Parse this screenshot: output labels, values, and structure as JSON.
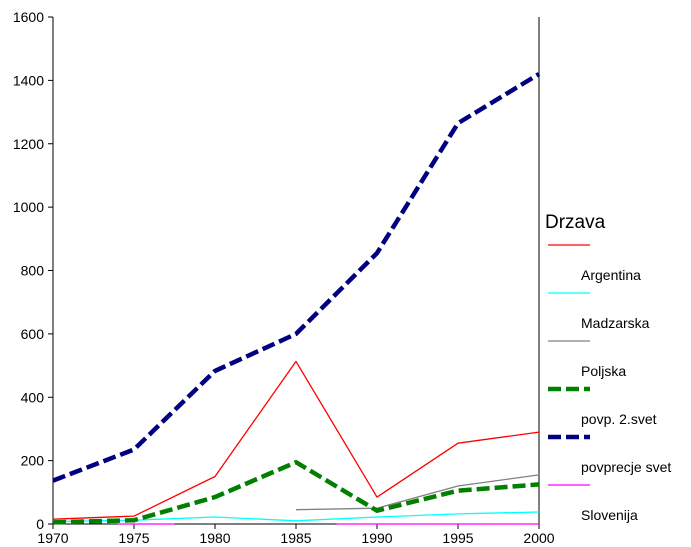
{
  "chart_data": {
    "type": "line",
    "title": "",
    "xlabel": "",
    "ylabel": "",
    "xlim": [
      1970,
      2000
    ],
    "ylim": [
      0,
      1600
    ],
    "x_ticks": [
      1970,
      1975,
      1980,
      1985,
      1990,
      1995,
      2000
    ],
    "y_ticks": [
      0,
      200,
      400,
      600,
      800,
      1000,
      1200,
      1400,
      1600
    ],
    "grid": false,
    "legend_title": "Drzava",
    "legend_position": "right",
    "series": [
      {
        "name": "Argentina",
        "color": "#ff0000",
        "style": "solid",
        "width": 1.3,
        "points": [
          [
            1970,
            15
          ],
          [
            1975,
            25
          ],
          [
            1980,
            150
          ],
          [
            1985,
            513
          ],
          [
            1990,
            85
          ],
          [
            1995,
            255
          ],
          [
            2000,
            290
          ]
        ]
      },
      {
        "name": "Madzarska",
        "color": "#00ffff",
        "style": "solid",
        "width": 1.3,
        "points": [
          [
            1970,
            8
          ],
          [
            1975,
            12
          ],
          [
            1980,
            22
          ],
          [
            1985,
            10
          ],
          [
            1990,
            22
          ],
          [
            1995,
            32
          ],
          [
            2000,
            38
          ]
        ]
      },
      {
        "name": "Poljska",
        "color": "#808080",
        "style": "solid",
        "width": 1.3,
        "points": [
          [
            1985,
            45
          ],
          [
            1990,
            50
          ],
          [
            1995,
            120
          ],
          [
            2000,
            155
          ]
        ]
      },
      {
        "name": "povp. 2.svet",
        "color": "#008000",
        "style": "dashed",
        "width": 4.5,
        "points": [
          [
            1970,
            5
          ],
          [
            1975,
            12
          ],
          [
            1980,
            85
          ],
          [
            1985,
            195
          ],
          [
            1990,
            42
          ],
          [
            1995,
            105
          ],
          [
            2000,
            125
          ]
        ]
      },
      {
        "name": "povprecje svet",
        "color": "#000080",
        "style": "dashed",
        "width": 4.5,
        "points": [
          [
            1970,
            137
          ],
          [
            1975,
            235
          ],
          [
            1980,
            483
          ],
          [
            1985,
            600
          ],
          [
            1990,
            855
          ],
          [
            1995,
            1265
          ],
          [
            2000,
            1420
          ]
        ]
      },
      {
        "name": "Slovenija",
        "color": "#ff00ff",
        "style": "solid",
        "width": 1.3,
        "segments": [
          [
            [
              1974,
              0
            ],
            [
              1977.5,
              0
            ]
          ],
          [
            [
              1987.5,
              0
            ],
            [
              2000,
              0
            ]
          ]
        ]
      }
    ]
  }
}
